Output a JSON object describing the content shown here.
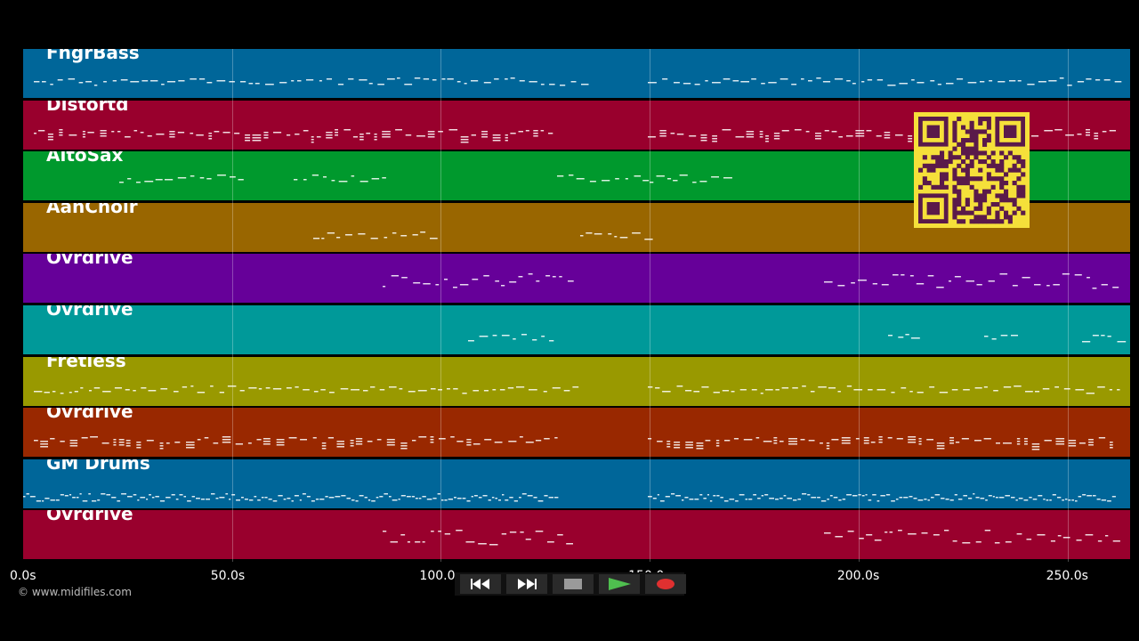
{
  "tracks": [
    {
      "name": "FngrBass",
      "color": "#006699",
      "pattern": "bass"
    },
    {
      "name": "Distortd",
      "color": "#99002d",
      "pattern": "chords"
    },
    {
      "name": "AltoSax",
      "color": "#00992d",
      "pattern": "sax"
    },
    {
      "name": "AahChoir",
      "color": "#996600",
      "pattern": "choir"
    },
    {
      "name": "Ovrdrive",
      "color": "#660099",
      "pattern": "lead"
    },
    {
      "name": "Ovrdrive",
      "color": "#009999",
      "pattern": "sparse"
    },
    {
      "name": "Fretless",
      "color": "#999900",
      "pattern": "bass"
    },
    {
      "name": "Ovrdrive",
      "color": "#992800",
      "pattern": "chords"
    },
    {
      "name": "GM Drums",
      "color": "#006699",
      "pattern": "drums"
    },
    {
      "name": "Ovrdrive",
      "color": "#99002d",
      "pattern": "lead"
    }
  ],
  "timeline": {
    "ticks": [
      "0.0s",
      "50.0s",
      "100.0s",
      "150.0s",
      "200.0s",
      "250.0s"
    ],
    "max_seconds": 265
  },
  "copyright": "© www.midifiles.com",
  "transport": [
    {
      "name": "rewind-button",
      "icon": "rewind-icon"
    },
    {
      "name": "fast-forward-button",
      "icon": "fast-forward-icon"
    },
    {
      "name": "stop-button",
      "icon": "stop-icon"
    },
    {
      "name": "play-button",
      "icon": "play-icon"
    },
    {
      "name": "record-button",
      "icon": "record-icon"
    }
  ],
  "colors": {
    "qr_fg": "#5a1a4a",
    "qr_bg": "#f5e03a",
    "play": "#2f8f2f",
    "record": "#e03030"
  }
}
